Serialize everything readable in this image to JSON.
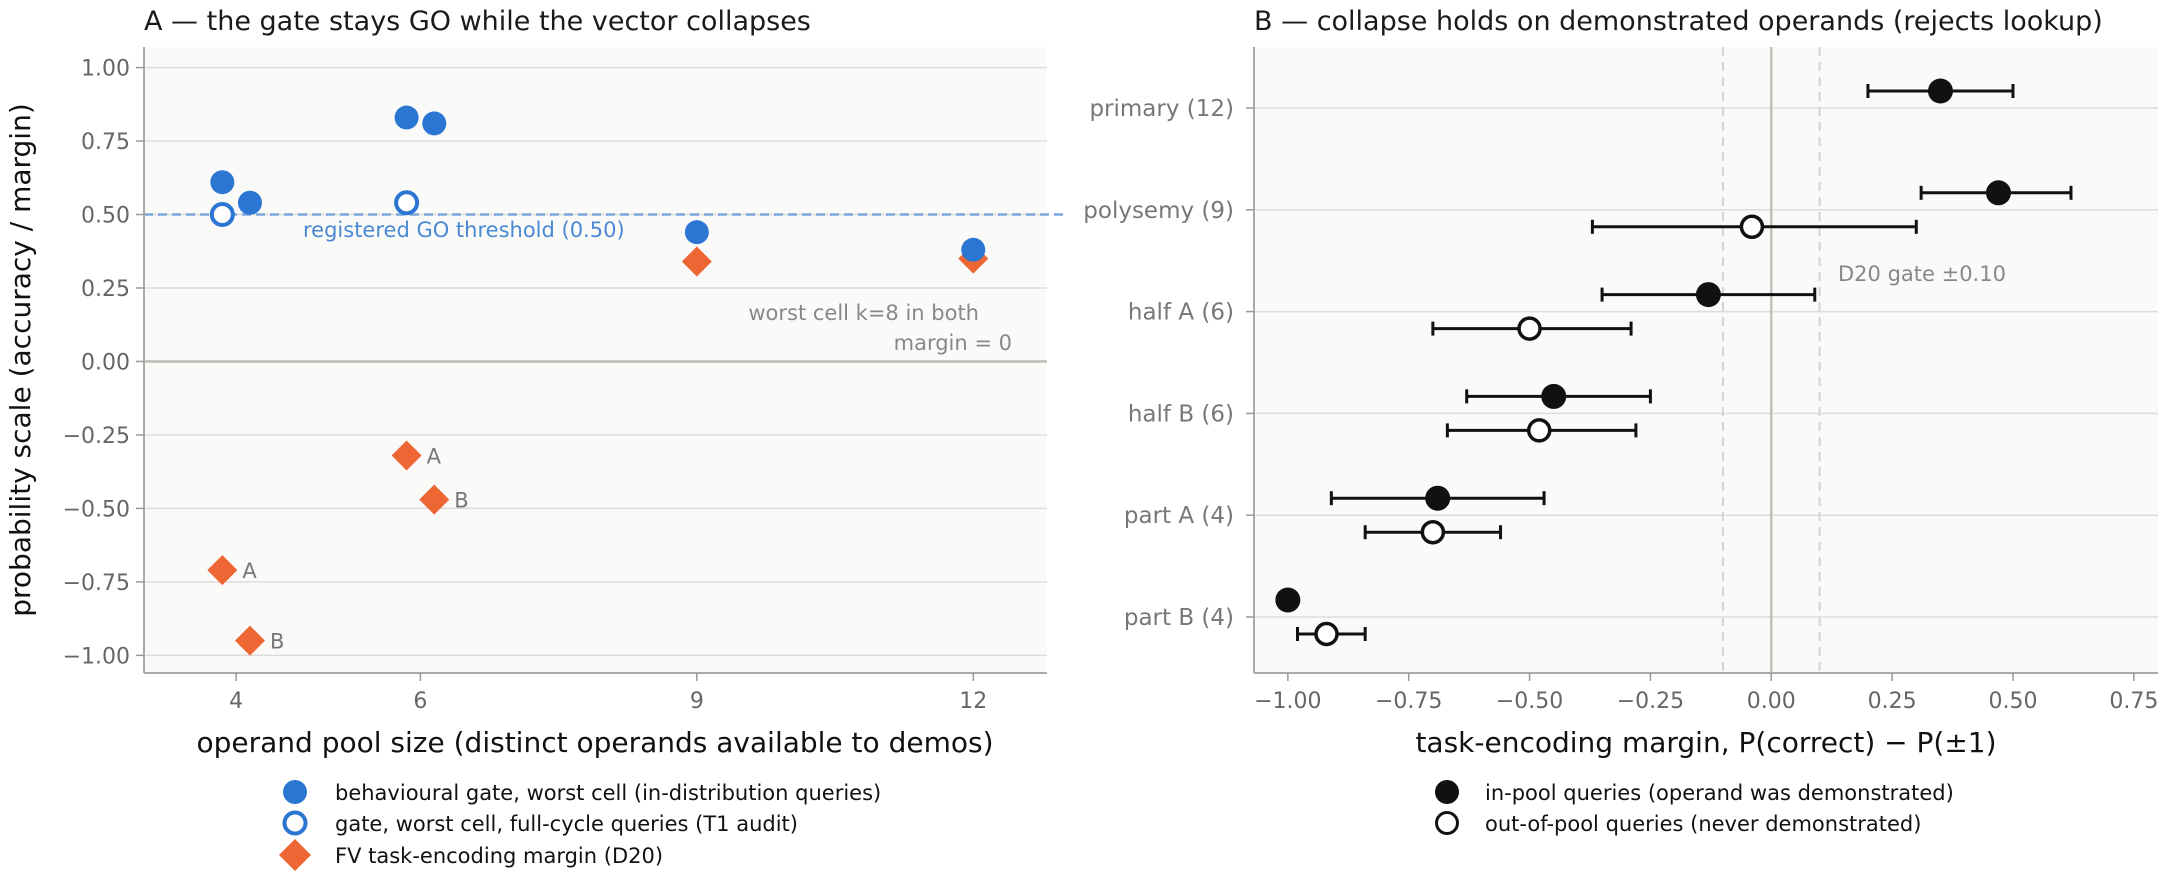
{
  "colors": {
    "blue": "#2a76d2",
    "orange": "#ee6633",
    "black": "#111111",
    "threshold": "#7aa8dc",
    "panel_bg": "#fafaf9",
    "grid": "#dcdcdc"
  },
  "chart_data": [
    {
      "type": "scatter",
      "title": "A — the gate stays GO while the vector collapses",
      "xlabel": "operand pool size (distinct operands available to demos)",
      "ylabel": "probability scale (accuracy / margin)",
      "xlim": [
        3,
        12.8
      ],
      "ylim": [
        -1.06,
        1.07
      ],
      "xticks": [
        4,
        6,
        9,
        12
      ],
      "yticks": [
        1.0,
        0.75,
        0.5,
        0.25,
        0.0,
        -0.25,
        -0.5,
        -0.75,
        -1.0
      ],
      "ytick_labels": [
        "1.00",
        "0.75",
        "0.50",
        "0.25",
        "0.00",
        "−0.25",
        "−0.50",
        "−0.75",
        "−1.00"
      ],
      "grid": true,
      "threshold": {
        "y": 0.5,
        "label": "registered GO threshold (0.50)"
      },
      "annotation": {
        "line1": "worst cell k=8 in both",
        "line2": "margin = 0"
      },
      "series": [
        {
          "name": "behavioural gate, worst cell (in-distribution queries)",
          "marker": "filled-circle",
          "points": [
            {
              "x": 3.85,
              "y": 0.61
            },
            {
              "x": 4.15,
              "y": 0.54
            },
            {
              "x": 5.85,
              "y": 0.83
            },
            {
              "x": 6.15,
              "y": 0.81
            },
            {
              "x": 9.0,
              "y": 0.44
            },
            {
              "x": 12.0,
              "y": 0.38
            }
          ]
        },
        {
          "name": "gate, worst cell, full-cycle queries (T1 audit)",
          "marker": "hollow-circle",
          "points": [
            {
              "x": 3.85,
              "y": 0.5
            },
            {
              "x": 5.85,
              "y": 0.54
            }
          ]
        },
        {
          "name": "FV task-encoding margin (D20)",
          "marker": "diamond",
          "points": [
            {
              "x": 3.85,
              "y": -0.71,
              "label": "A"
            },
            {
              "x": 4.15,
              "y": -0.95,
              "label": "B"
            },
            {
              "x": 5.85,
              "y": -0.32,
              "label": "A"
            },
            {
              "x": 6.15,
              "y": -0.47,
              "label": "B"
            },
            {
              "x": 9.0,
              "y": 0.34
            },
            {
              "x": 12.0,
              "y": 0.35
            }
          ]
        }
      ],
      "legend_placement": "below"
    },
    {
      "type": "scatter",
      "title": "B — collapse holds on demonstrated operands (rejects lookup)",
      "xlabel": "task-encoding margin, P(correct) − P(±1)",
      "xlim": [
        -1.07,
        0.8
      ],
      "xticks": [
        -1.0,
        -0.75,
        -0.5,
        -0.25,
        0.0,
        0.25,
        0.5,
        0.75
      ],
      "xtick_labels": [
        "−1.00",
        "−0.75",
        "−0.50",
        "−0.25",
        "0.00",
        "0.25",
        "0.50",
        "0.75"
      ],
      "categories": [
        "primary (12)",
        "polysemy (9)",
        "half A (6)",
        "half B (6)",
        "part A (4)",
        "part B (4)"
      ],
      "gate": {
        "value": 0.1,
        "label": "D20 gate ±0.10"
      },
      "series": [
        {
          "name": "in-pool queries (operand was demonstrated)",
          "marker": "filled-circle",
          "points": [
            {
              "category": "primary (12)",
              "x": 0.35,
              "lo": 0.2,
              "hi": 0.5
            },
            {
              "category": "polysemy (9)",
              "x": 0.47,
              "lo": 0.31,
              "hi": 0.62
            },
            {
              "category": "half A (6)",
              "x": -0.13,
              "lo": -0.35,
              "hi": 0.09
            },
            {
              "category": "half B (6)",
              "x": -0.45,
              "lo": -0.63,
              "hi": -0.25
            },
            {
              "category": "part A (4)",
              "x": -0.69,
              "lo": -0.91,
              "hi": -0.47
            },
            {
              "category": "part B (4)",
              "x": -1.0
            }
          ]
        },
        {
          "name": "out-of-pool queries (never demonstrated)",
          "marker": "hollow-circle",
          "points": [
            {
              "category": "polysemy (9)",
              "x": -0.04,
              "lo": -0.37,
              "hi": 0.3
            },
            {
              "category": "half A (6)",
              "x": -0.5,
              "lo": -0.7,
              "hi": -0.29
            },
            {
              "category": "half B (6)",
              "x": -0.48,
              "lo": -0.67,
              "hi": -0.28
            },
            {
              "category": "part A (4)",
              "x": -0.7,
              "lo": -0.84,
              "hi": -0.56
            },
            {
              "category": "part B (4)",
              "x": -0.92,
              "lo": -0.98,
              "hi": -0.84
            }
          ]
        }
      ],
      "legend_placement": "below"
    }
  ]
}
